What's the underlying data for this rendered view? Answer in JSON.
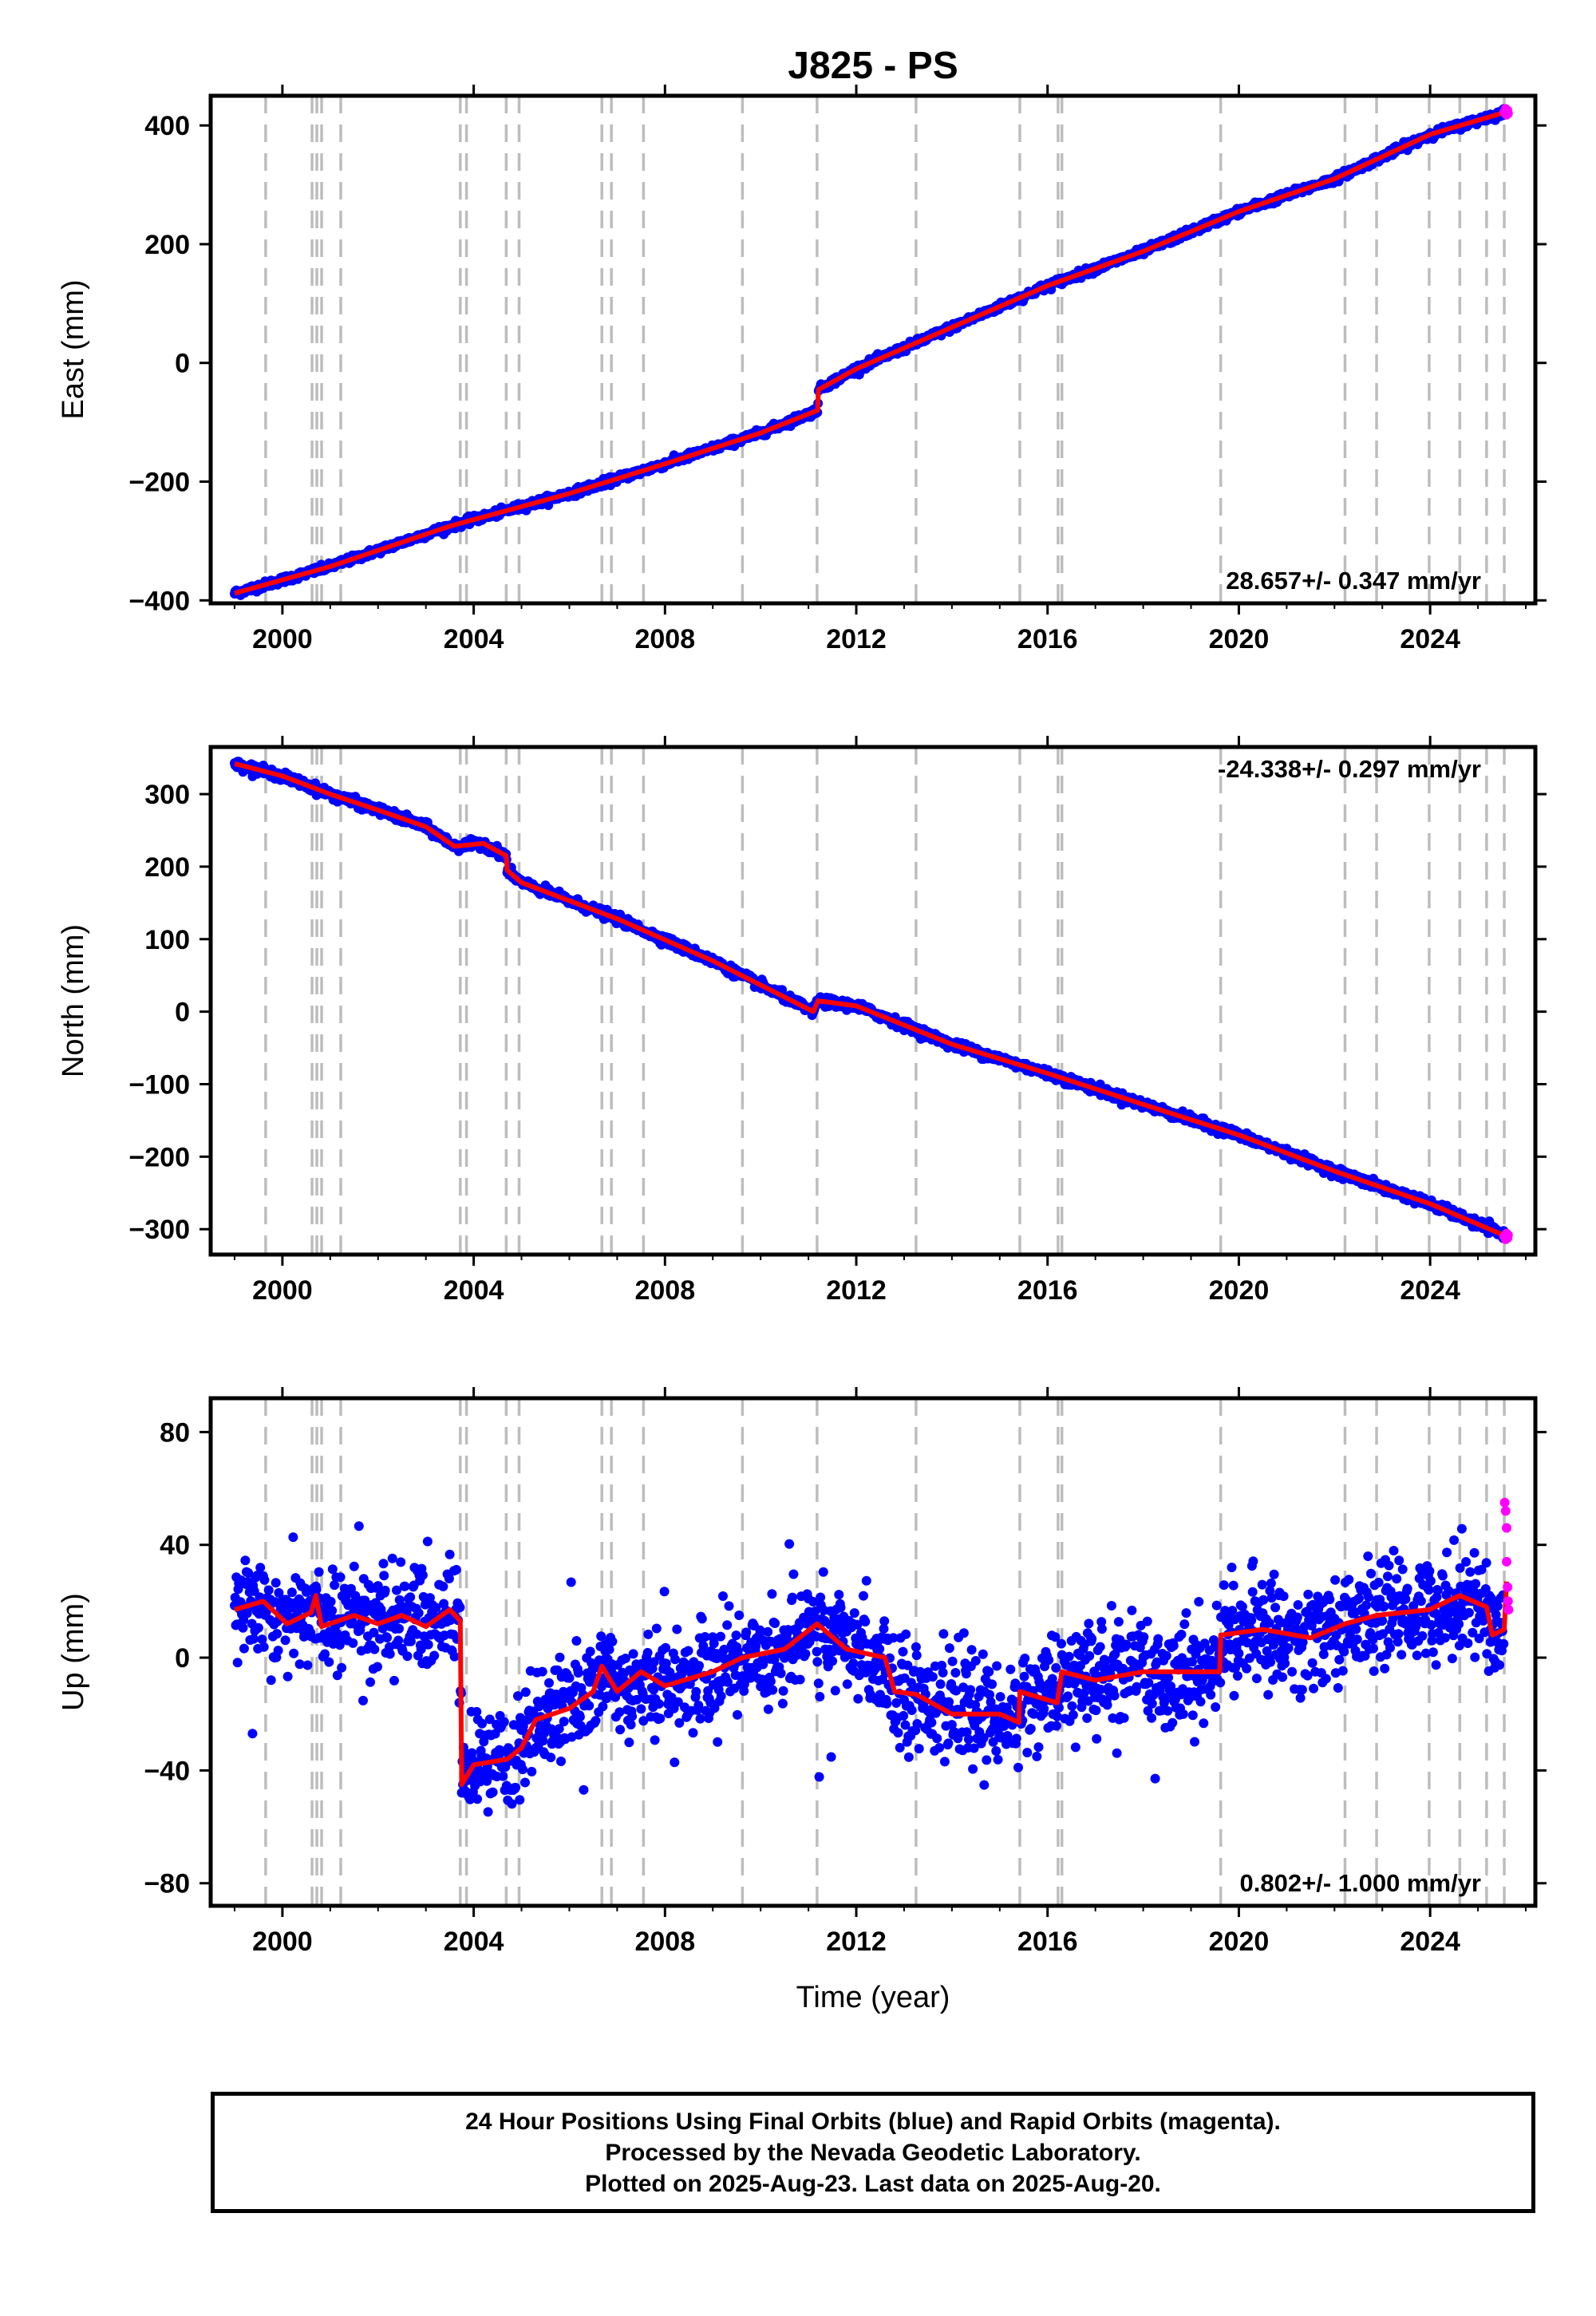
{
  "title": "J825 - PS",
  "xlabel": "Time (year)",
  "caption": {
    "line1": "24 Hour Positions Using Final Orbits (blue) and Rapid Orbits (magenta).",
    "line2": "Processed by the Nevada Geodetic Laboratory.",
    "line3": "Plotted on 2025-Aug-23. Last data on 2025-Aug-20."
  },
  "colors": {
    "final_orbits": "#0000ff",
    "rapid_orbits": "#ff00ff",
    "model": "#ff0000",
    "event_lines": "#bdbdbd"
  },
  "chart_data": [
    {
      "type": "scatter",
      "name": "east",
      "ylabel": "East (mm)",
      "xlim": [
        1998.5,
        2026.2
      ],
      "ylim": [
        -405,
        450
      ],
      "xticks": [
        2000,
        2004,
        2008,
        2012,
        2016,
        2020,
        2024
      ],
      "yticks": [
        -400,
        -200,
        0,
        200,
        400
      ],
      "rate_label": "28.657+/- 0.347 mm/yr",
      "rate_position": "bottom-right",
      "grid": false,
      "noise_mm": 3,
      "event_lines": [
        1999.65,
        2000.62,
        2000.72,
        2000.82,
        2001.22,
        2003.72,
        2003.85,
        2004.68,
        2004.95,
        2006.68,
        2006.88,
        2007.55,
        2009.62,
        2011.18,
        2013.25,
        2015.42,
        2016.22,
        2016.3,
        2019.62,
        2022.22,
        2022.88,
        2023.98,
        2024.62,
        2025.18,
        2025.55
      ],
      "trend": [
        [
          1999.0,
          -388
        ],
        [
          2001.0,
          -343
        ],
        [
          2003.5,
          -275
        ],
        [
          2006.0,
          -220
        ],
        [
          2008.0,
          -170
        ],
        [
          2010.0,
          -118
        ],
        [
          2011.19,
          -80
        ],
        [
          2011.21,
          -45
        ],
        [
          2012.0,
          -10
        ],
        [
          2014.0,
          60
        ],
        [
          2016.0,
          130
        ],
        [
          2018.0,
          188
        ],
        [
          2020.0,
          255
        ],
        [
          2022.0,
          310
        ],
        [
          2024.0,
          385
        ],
        [
          2025.6,
          423
        ]
      ],
      "rapid_points": [
        [
          2025.55,
          422
        ],
        [
          2025.58,
          428
        ],
        [
          2025.6,
          418
        ],
        [
          2025.62,
          425
        ],
        [
          2025.63,
          420
        ]
      ]
    },
    {
      "type": "scatter",
      "name": "north",
      "ylabel": "North (mm)",
      "xlim": [
        1998.5,
        2026.2
      ],
      "ylim": [
        -335,
        365
      ],
      "xticks": [
        2000,
        2004,
        2008,
        2012,
        2016,
        2020,
        2024
      ],
      "yticks": [
        -300,
        -200,
        -100,
        0,
        100,
        200,
        300
      ],
      "rate_label": "-24.338+/- 0.297 mm/yr",
      "rate_position": "top-right",
      "grid": false,
      "noise_mm": 3,
      "event_lines": [
        1999.65,
        2000.62,
        2000.72,
        2000.82,
        2001.22,
        2003.72,
        2003.85,
        2004.68,
        2004.95,
        2006.68,
        2006.88,
        2007.55,
        2009.62,
        2011.18,
        2013.25,
        2015.42,
        2016.22,
        2016.3,
        2019.62,
        2022.22,
        2022.88,
        2023.98,
        2024.62,
        2025.18,
        2025.55
      ],
      "trend": [
        [
          1999.0,
          342
        ],
        [
          2000.0,
          325
        ],
        [
          2001.0,
          300
        ],
        [
          2002.0,
          278
        ],
        [
          2003.0,
          255
        ],
        [
          2003.6,
          228
        ],
        [
          2004.2,
          232
        ],
        [
          2004.68,
          215
        ],
        [
          2004.7,
          195
        ],
        [
          2005.0,
          178
        ],
        [
          2007.0,
          128
        ],
        [
          2009.0,
          70
        ],
        [
          2011.1,
          0
        ],
        [
          2011.2,
          15
        ],
        [
          2012.0,
          8
        ],
        [
          2014.0,
          -45
        ],
        [
          2016.0,
          -85
        ],
        [
          2018.0,
          -128
        ],
        [
          2020.0,
          -170
        ],
        [
          2022.0,
          -220
        ],
        [
          2024.0,
          -265
        ],
        [
          2025.6,
          -310
        ]
      ],
      "rapid_points": [
        [
          2025.55,
          -310
        ],
        [
          2025.58,
          -314
        ],
        [
          2025.6,
          -306
        ],
        [
          2025.62,
          -312
        ],
        [
          2025.63,
          -308
        ]
      ]
    },
    {
      "type": "scatter",
      "name": "up",
      "ylabel": "Up (mm)",
      "xlim": [
        1998.5,
        2026.2
      ],
      "ylim": [
        -88,
        92
      ],
      "xticks": [
        2000,
        2004,
        2008,
        2012,
        2016,
        2020,
        2024
      ],
      "yticks": [
        -80,
        -40,
        0,
        40,
        80
      ],
      "rate_label": "0.802+/- 1.000 mm/yr",
      "rate_position": "bottom-right",
      "grid": false,
      "noise_mm": 9,
      "event_lines": [
        1999.65,
        2000.62,
        2000.72,
        2000.82,
        2001.22,
        2003.72,
        2003.85,
        2004.68,
        2004.95,
        2006.68,
        2006.88,
        2007.55,
        2009.62,
        2011.18,
        2013.25,
        2015.42,
        2016.22,
        2016.3,
        2019.62,
        2022.22,
        2022.88,
        2023.98,
        2024.62,
        2025.18,
        2025.55
      ],
      "trend": [
        [
          1999.0,
          17
        ],
        [
          1999.6,
          20
        ],
        [
          2000.1,
          12
        ],
        [
          2000.6,
          16
        ],
        [
          2000.7,
          22
        ],
        [
          2000.82,
          11
        ],
        [
          2001.5,
          15
        ],
        [
          2002.0,
          12
        ],
        [
          2002.5,
          15
        ],
        [
          2003.0,
          11
        ],
        [
          2003.5,
          17
        ],
        [
          2003.72,
          13
        ],
        [
          2003.75,
          -45
        ],
        [
          2004.0,
          -38
        ],
        [
          2004.7,
          -36
        ],
        [
          2005.0,
          -32
        ],
        [
          2005.3,
          -22
        ],
        [
          2006.0,
          -18
        ],
        [
          2006.5,
          -12
        ],
        [
          2006.68,
          -3
        ],
        [
          2007.0,
          -12
        ],
        [
          2007.5,
          -5
        ],
        [
          2008.0,
          -10
        ],
        [
          2009.0,
          -5
        ],
        [
          2009.62,
          0
        ],
        [
          2010.5,
          3
        ],
        [
          2011.18,
          12
        ],
        [
          2011.8,
          3
        ],
        [
          2012.6,
          0
        ],
        [
          2012.8,
          -12
        ],
        [
          2013.25,
          -13
        ],
        [
          2014.0,
          -20
        ],
        [
          2015.0,
          -20
        ],
        [
          2015.4,
          -23
        ],
        [
          2015.42,
          -12
        ],
        [
          2016.2,
          -16
        ],
        [
          2016.3,
          -5
        ],
        [
          2017.0,
          -8
        ],
        [
          2018.0,
          -5
        ],
        [
          2019.6,
          -5
        ],
        [
          2019.62,
          8
        ],
        [
          2020.5,
          10
        ],
        [
          2021.5,
          7
        ],
        [
          2022.22,
          12
        ],
        [
          2022.88,
          15
        ],
        [
          2023.98,
          17
        ],
        [
          2024.62,
          22
        ],
        [
          2025.18,
          18
        ],
        [
          2025.3,
          8
        ],
        [
          2025.55,
          10
        ],
        [
          2025.6,
          27
        ]
      ],
      "rapid_points": [
        [
          2025.56,
          55
        ],
        [
          2025.58,
          52
        ],
        [
          2025.6,
          46
        ],
        [
          2025.6,
          34
        ],
        [
          2025.62,
          25
        ],
        [
          2025.63,
          20
        ],
        [
          2025.64,
          17
        ]
      ]
    }
  ]
}
